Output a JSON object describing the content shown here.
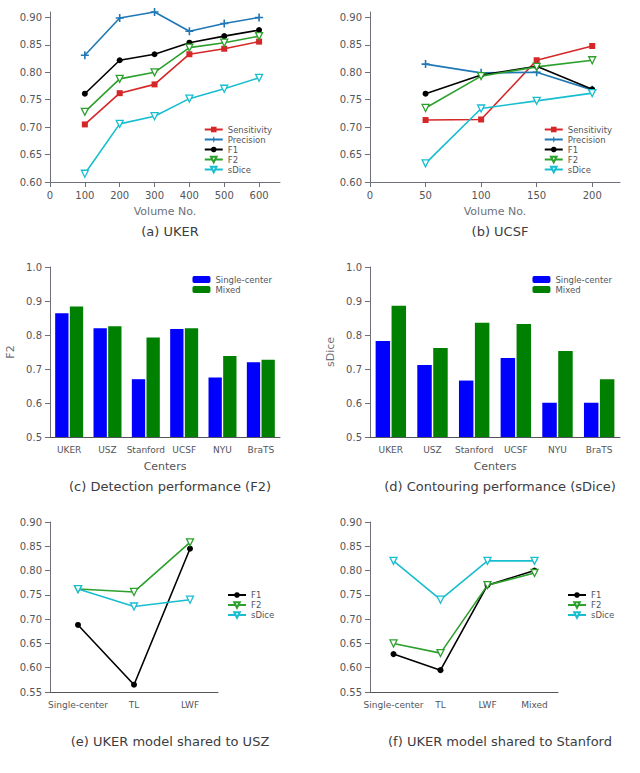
{
  "chart_data": [
    {
      "type": "line",
      "title": "(a) UKER",
      "xlabel": "Volume No.",
      "x": [
        100,
        200,
        300,
        400,
        500,
        600
      ],
      "series": [
        {
          "name": "Sensitivity",
          "color": "#d62728",
          "marker": "square",
          "values": [
            0.705,
            0.762,
            0.778,
            0.833,
            0.843,
            0.856
          ]
        },
        {
          "name": "Precision",
          "color": "#1f77b4",
          "marker": "plus",
          "values": [
            0.831,
            0.899,
            0.91,
            0.875,
            0.889,
            0.9
          ]
        },
        {
          "name": "F1",
          "color": "#000000",
          "marker": "circle",
          "values": [
            0.761,
            0.822,
            0.833,
            0.854,
            0.866,
            0.877
          ]
        },
        {
          "name": "F2",
          "color": "#2ca02c",
          "marker": "triangle_down",
          "values": [
            0.728,
            0.788,
            0.8,
            0.845,
            0.854,
            0.866
          ]
        },
        {
          "name": "sDice",
          "color": "#17becf",
          "marker": "triangle_down",
          "values": [
            0.615,
            0.706,
            0.72,
            0.752,
            0.77,
            0.79
          ]
        }
      ],
      "xlim": [
        0,
        660
      ],
      "xticks": [
        0,
        100,
        200,
        300,
        400,
        500,
        600
      ],
      "ylim": [
        0.6,
        0.91
      ],
      "yticks": [
        {
          "value": 0.6,
          "label": "0.60"
        },
        0.65,
        {
          "value": 0.7,
          "label": "0.70"
        },
        0.75,
        {
          "value": 0.8,
          "label": "0.80"
        },
        0.85,
        {
          "value": 0.9,
          "label": "0.90"
        }
      ],
      "grid": false,
      "legend": "lower right"
    },
    {
      "type": "line",
      "title": "(b) UCSF",
      "xlabel": "Volume No.",
      "x": [
        50,
        100,
        150,
        200
      ],
      "series": [
        {
          "name": "Sensitivity",
          "color": "#d62728",
          "marker": "square",
          "values": [
            0.713,
            0.714,
            0.822,
            0.848
          ]
        },
        {
          "name": "Precision",
          "color": "#1f77b4",
          "marker": "plus",
          "values": [
            0.815,
            0.799,
            0.8,
            0.768
          ]
        },
        {
          "name": "F1",
          "color": "#000000",
          "marker": "circle",
          "values": [
            0.761,
            0.795,
            0.811,
            0.769
          ]
        },
        {
          "name": "F2",
          "color": "#2ca02c",
          "marker": "triangle_down",
          "values": [
            0.735,
            0.793,
            0.81,
            0.822
          ]
        },
        {
          "name": "sDice",
          "color": "#17becf",
          "marker": "triangle_down",
          "values": [
            0.634,
            0.734,
            0.748,
            0.762
          ]
        }
      ],
      "xlim": [
        0,
        225
      ],
      "xticks": [
        0,
        50,
        100,
        150,
        200
      ],
      "ylim": [
        0.6,
        0.91
      ],
      "yticks": [
        {
          "value": 0.6,
          "label": "0.60"
        },
        0.65,
        {
          "value": 0.7,
          "label": "0.70"
        },
        0.75,
        {
          "value": 0.8,
          "label": "0.80"
        },
        0.85,
        {
          "value": 0.9,
          "label": "0.90"
        }
      ],
      "grid": false,
      "legend": "lower right"
    },
    {
      "type": "bar",
      "title": "(c) Detection performance (F2)",
      "xlabel": "Centers",
      "ylabel": "F2",
      "categories": [
        "UKER",
        "USZ",
        "Stanford",
        "UCSF",
        "NYU",
        "BraTS"
      ],
      "series": [
        {
          "name": "Single-center",
          "color": "#0000ff",
          "values": [
            0.864,
            0.82,
            0.67,
            0.818,
            0.675,
            0.72
          ]
        },
        {
          "name": "Mixed",
          "color": "#008000",
          "values": [
            0.884,
            0.826,
            0.793,
            0.82,
            0.738,
            0.727
          ]
        }
      ],
      "ylim": [
        0.5,
        1.0
      ],
      "yticks": [
        0.5,
        0.6,
        0.7,
        0.8,
        0.9,
        {
          "value": 1.0,
          "label": "1.0"
        }
      ],
      "grid": false,
      "legend": "upper right"
    },
    {
      "type": "bar",
      "title": "(d) Contouring performance (sDice)",
      "xlabel": "Centers",
      "ylabel": "sDice",
      "categories": [
        "UKER",
        "USZ",
        "Stanford",
        "UCSF",
        "NYU",
        "BraTS"
      ],
      "series": [
        {
          "name": "Single-center",
          "color": "#0000ff",
          "values": [
            0.782,
            0.712,
            0.666,
            0.732,
            0.601,
            0.601
          ]
        },
        {
          "name": "Mixed",
          "color": "#008000",
          "values": [
            0.886,
            0.762,
            0.836,
            0.832,
            0.753,
            0.67
          ]
        }
      ],
      "ylim": [
        0.5,
        1.0
      ],
      "yticks": [
        0.5,
        0.6,
        0.7,
        0.8,
        0.9,
        {
          "value": 1.0,
          "label": "1.0"
        }
      ],
      "grid": false,
      "legend": "upper right"
    },
    {
      "type": "line",
      "title": "(e) UKER model shared to USZ",
      "categories": [
        "Single-center",
        "TL",
        "LWF"
      ],
      "series": [
        {
          "name": "F1",
          "color": "#000000",
          "marker": "circle",
          "values": [
            0.688,
            0.565,
            0.845
          ]
        },
        {
          "name": "F2",
          "color": "#2ca02c",
          "marker": "triangle_down",
          "values": [
            0.762,
            0.756,
            0.858
          ]
        },
        {
          "name": "sDice",
          "color": "#17becf",
          "marker": "triangle_down",
          "values": [
            0.762,
            0.726,
            0.74
          ]
        }
      ],
      "ylim": [
        0.55,
        0.9
      ],
      "yticks": [
        0.55,
        {
          "value": 0.6,
          "label": "0.60"
        },
        0.65,
        {
          "value": 0.7,
          "label": "0.70"
        },
        0.75,
        {
          "value": 0.8,
          "label": "0.80"
        },
        0.85,
        {
          "value": 0.9,
          "label": "0.90"
        }
      ],
      "grid": false,
      "legend": "center right"
    },
    {
      "type": "line",
      "title": "(f) UKER model shared to Stanford",
      "categories": [
        "Single-center",
        "TL",
        "LWF",
        "Mixed"
      ],
      "series": [
        {
          "name": "F1",
          "color": "#000000",
          "marker": "circle",
          "values": [
            0.628,
            0.595,
            0.77,
            0.8
          ]
        },
        {
          "name": "F2",
          "color": "#2ca02c",
          "marker": "triangle_down",
          "values": [
            0.65,
            0.63,
            0.77,
            0.795
          ]
        },
        {
          "name": "sDice",
          "color": "#17becf",
          "marker": "triangle_down",
          "values": [
            0.82,
            0.74,
            0.82,
            0.82
          ]
        }
      ],
      "ylim": [
        0.55,
        0.9
      ],
      "yticks": [
        0.55,
        {
          "value": 0.6,
          "label": "0.60"
        },
        0.65,
        {
          "value": 0.7,
          "label": "0.70"
        },
        0.75,
        {
          "value": 0.8,
          "label": "0.80"
        },
        0.85,
        {
          "value": 0.9,
          "label": "0.90"
        }
      ],
      "grid": false,
      "legend": "center right"
    }
  ]
}
